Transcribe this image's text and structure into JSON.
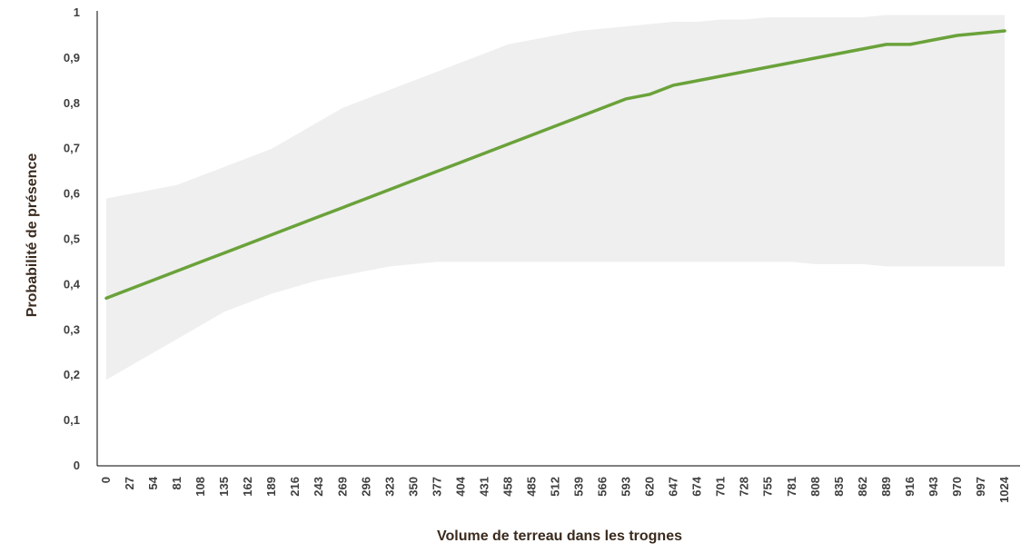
{
  "chart_data": {
    "type": "line",
    "title": "",
    "xlabel": "Volume de terreau dans les trognes",
    "ylabel": "Probabilité de présence",
    "ylim": [
      0,
      1
    ],
    "y_ticks": [
      "0",
      "0,1",
      "0,2",
      "0,3",
      "0,4",
      "0,5",
      "0,6",
      "0,7",
      "0,8",
      "0,9",
      "1"
    ],
    "y_tick_values": [
      0,
      0.1,
      0.2,
      0.3,
      0.4,
      0.5,
      0.6,
      0.7,
      0.8,
      0.9,
      1
    ],
    "categories": [
      "0",
      "27",
      "54",
      "81",
      "108",
      "135",
      "162",
      "189",
      "216",
      "243",
      "269",
      "296",
      "323",
      "350",
      "377",
      "404",
      "431",
      "458",
      "485",
      "512",
      "539",
      "566",
      "593",
      "620",
      "647",
      "674",
      "701",
      "728",
      "755",
      "781",
      "808",
      "835",
      "862",
      "889",
      "916",
      "943",
      "970",
      "997",
      "1024"
    ],
    "grid": false,
    "legend": false,
    "colors": {
      "line": "#6aa23a",
      "band": "#efefef",
      "axis": "#000000"
    },
    "series": [
      {
        "values": [
          0.37,
          0.39,
          0.41,
          0.43,
          0.45,
          0.47,
          0.49,
          0.51,
          0.53,
          0.55,
          0.57,
          0.59,
          0.61,
          0.63,
          0.65,
          0.67,
          0.69,
          0.71,
          0.73,
          0.75,
          0.77,
          0.79,
          0.81,
          0.82,
          0.84,
          0.85,
          0.86,
          0.87,
          0.88,
          0.89,
          0.9,
          0.91,
          0.92,
          0.93,
          0.93,
          0.94,
          0.95,
          0.955,
          0.96
        ],
        "lower": [
          0.19,
          0.22,
          0.25,
          0.28,
          0.31,
          0.34,
          0.36,
          0.38,
          0.395,
          0.41,
          0.42,
          0.43,
          0.44,
          0.445,
          0.45,
          0.45,
          0.45,
          0.45,
          0.45,
          0.45,
          0.45,
          0.45,
          0.45,
          0.45,
          0.45,
          0.45,
          0.45,
          0.45,
          0.45,
          0.45,
          0.445,
          0.445,
          0.445,
          0.44,
          0.44,
          0.44,
          0.44,
          0.44,
          0.44
        ],
        "upper": [
          0.59,
          0.6,
          0.61,
          0.62,
          0.64,
          0.66,
          0.68,
          0.7,
          0.73,
          0.76,
          0.79,
          0.81,
          0.83,
          0.85,
          0.87,
          0.89,
          0.91,
          0.93,
          0.94,
          0.95,
          0.96,
          0.965,
          0.97,
          0.975,
          0.98,
          0.98,
          0.985,
          0.985,
          0.99,
          0.99,
          0.99,
          0.99,
          0.99,
          0.995,
          0.995,
          0.995,
          0.995,
          0.995,
          0.995
        ]
      }
    ]
  }
}
